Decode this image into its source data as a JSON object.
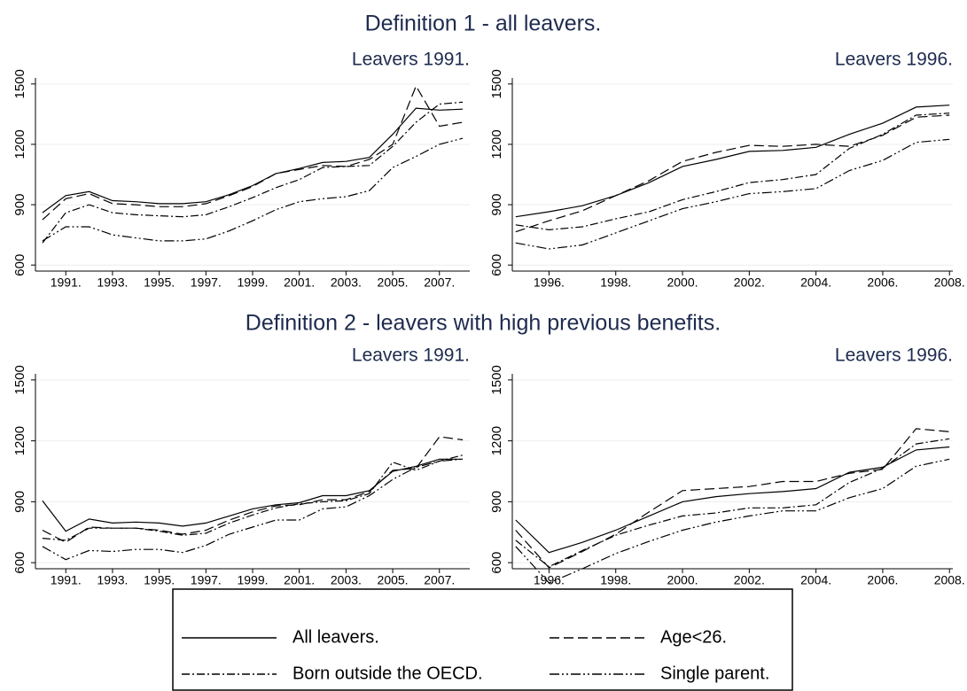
{
  "chart_data": [
    {
      "type": "line",
      "heading": "Definition 1 - all leavers.",
      "title": "Leavers 1991.",
      "grid": true,
      "x": [
        1990,
        1991,
        1992,
        1993,
        1994,
        1995,
        1996,
        1997,
        1998,
        1999,
        2000,
        2001,
        2002,
        2003,
        2004,
        2005,
        2006,
        2007,
        2008
      ],
      "xlim": [
        1989.7,
        2008.3
      ],
      "xticks": [
        {
          "value": 1991,
          "label": "1991."
        },
        {
          "value": 1993,
          "label": "1993."
        },
        {
          "value": 1995,
          "label": "1995."
        },
        {
          "value": 1997,
          "label": "1997."
        },
        {
          "value": 1999,
          "label": "1999."
        },
        {
          "value": 2001,
          "label": "2001."
        },
        {
          "value": 2003,
          "label": "2003."
        },
        {
          "value": 2005,
          "label": "2005."
        },
        {
          "value": 2007,
          "label": "2007."
        }
      ],
      "ylim": [
        570,
        1530
      ],
      "yticks": [
        600,
        900,
        1200,
        1500
      ],
      "series": [
        {
          "name": "All leavers.",
          "color": "#000000",
          "dash": "solid",
          "values": [
            860,
            945,
            965,
            920,
            915,
            905,
            905,
            915,
            950,
            995,
            1055,
            1080,
            1110,
            1115,
            1135,
            1250,
            1380,
            1370,
            1375
          ]
        },
        {
          "name": "Age<26.",
          "color": "#000000",
          "dash": "dash",
          "values": [
            825,
            930,
            955,
            905,
            900,
            890,
            890,
            905,
            945,
            990,
            1055,
            1075,
            1095,
            1090,
            1125,
            1200,
            1490,
            1290,
            1310
          ]
        },
        {
          "name": "Born outside the OECD.",
          "color": "#000000",
          "dash": "dashdot",
          "values": [
            710,
            860,
            900,
            860,
            850,
            845,
            840,
            850,
            890,
            935,
            985,
            1025,
            1085,
            1090,
            1095,
            1190,
            1310,
            1400,
            1410
          ]
        },
        {
          "name": "Single parent.",
          "color": "#000000",
          "dash": "dashdotdot",
          "values": [
            720,
            790,
            790,
            750,
            735,
            720,
            720,
            730,
            770,
            820,
            875,
            915,
            930,
            940,
            970,
            1085,
            1140,
            1200,
            1230
          ]
        }
      ]
    },
    {
      "type": "line",
      "title": "Leavers 1996.",
      "grid": true,
      "x": [
        1995,
        1996,
        1997,
        1998,
        1999,
        2000,
        2001,
        2002,
        2003,
        2004,
        2005,
        2006,
        2007,
        2008
      ],
      "xlim": [
        1994.9,
        2008.1
      ],
      "xticks": [
        {
          "value": 1996,
          "label": "1996."
        },
        {
          "value": 1998,
          "label": "1998."
        },
        {
          "value": 2000,
          "label": "2000."
        },
        {
          "value": 2002,
          "label": "2002."
        },
        {
          "value": 2004,
          "label": "2004."
        },
        {
          "value": 2006,
          "label": "2006."
        },
        {
          "value": 2008,
          "label": "2008."
        }
      ],
      "ylim": [
        570,
        1530
      ],
      "yticks": [
        600,
        900,
        1200,
        1500
      ],
      "series": [
        {
          "name": "All leavers.",
          "color": "#000000",
          "dash": "solid",
          "values": [
            840,
            865,
            895,
            945,
            1010,
            1090,
            1125,
            1165,
            1170,
            1185,
            1250,
            1305,
            1385,
            1395
          ]
        },
        {
          "name": "Age<26.",
          "color": "#000000",
          "dash": "dash",
          "values": [
            765,
            820,
            870,
            945,
            1020,
            1115,
            1160,
            1195,
            1190,
            1200,
            1190,
            1245,
            1335,
            1345
          ]
        },
        {
          "name": "Born outside the OECD.",
          "color": "#000000",
          "dash": "dashdot",
          "values": [
            800,
            775,
            790,
            830,
            865,
            925,
            965,
            1010,
            1025,
            1050,
            1180,
            1250,
            1345,
            1355
          ]
        },
        {
          "name": "Single parent.",
          "color": "#000000",
          "dash": "dashdotdot",
          "values": [
            710,
            680,
            700,
            760,
            820,
            880,
            915,
            955,
            965,
            980,
            1070,
            1120,
            1210,
            1225
          ]
        }
      ]
    },
    {
      "type": "line",
      "heading": "Definition 2 - leavers with high previous benefits.",
      "title": "Leavers 1991.",
      "grid": true,
      "x": [
        1990,
        1991,
        1992,
        1993,
        1994,
        1995,
        1996,
        1997,
        1998,
        1999,
        2000,
        2001,
        2002,
        2003,
        2004,
        2005,
        2006,
        2007,
        2008
      ],
      "xlim": [
        1989.7,
        2008.3
      ],
      "xticks": [
        {
          "value": 1991,
          "label": "1991."
        },
        {
          "value": 1993,
          "label": "1993."
        },
        {
          "value": 1995,
          "label": "1995."
        },
        {
          "value": 1997,
          "label": "1997."
        },
        {
          "value": 1999,
          "label": "1999."
        },
        {
          "value": 2001,
          "label": "2001."
        },
        {
          "value": 2003,
          "label": "2003."
        },
        {
          "value": 2005,
          "label": "2005."
        },
        {
          "value": 2007,
          "label": "2007."
        }
      ],
      "ylim": [
        570,
        1530
      ],
      "yticks": [
        600,
        900,
        1200,
        1500
      ],
      "series": [
        {
          "name": "All leavers.",
          "color": "#000000",
          "dash": "solid",
          "values": [
            905,
            755,
            815,
            795,
            800,
            795,
            780,
            795,
            830,
            865,
            885,
            895,
            930,
            930,
            955,
            1050,
            1075,
            1110,
            1110
          ]
        },
        {
          "name": "Age<26.",
          "color": "#000000",
          "dash": "dash",
          "values": [
            760,
            700,
            775,
            770,
            770,
            760,
            740,
            760,
            810,
            850,
            880,
            885,
            910,
            910,
            950,
            1055,
            1065,
            1220,
            1205
          ]
        },
        {
          "name": "Born outside the OECD.",
          "color": "#000000",
          "dash": "dashdot",
          "values": [
            720,
            710,
            770,
            770,
            770,
            755,
            735,
            745,
            795,
            835,
            870,
            890,
            900,
            905,
            940,
            1095,
            1055,
            1100,
            1130
          ]
        },
        {
          "name": "Single parent.",
          "color": "#000000",
          "dash": "dashdotdot",
          "values": [
            680,
            615,
            660,
            655,
            665,
            665,
            650,
            685,
            740,
            775,
            810,
            810,
            865,
            875,
            930,
            1010,
            1070,
            1100,
            1110
          ]
        }
      ]
    },
    {
      "type": "line",
      "title": "Leavers 1996.",
      "grid": true,
      "x": [
        1995,
        1996,
        1997,
        1998,
        1999,
        2000,
        2001,
        2002,
        2003,
        2004,
        2005,
        2006,
        2007,
        2008
      ],
      "xlim": [
        1994.9,
        2008.1
      ],
      "xticks": [
        {
          "value": 1996,
          "label": "1996."
        },
        {
          "value": 1998,
          "label": "1998."
        },
        {
          "value": 2000,
          "label": "2000."
        },
        {
          "value": 2002,
          "label": "2002."
        },
        {
          "value": 2004,
          "label": "2004."
        },
        {
          "value": 2006,
          "label": "2006."
        },
        {
          "value": 2008,
          "label": "2008."
        }
      ],
      "ylim": [
        570,
        1530
      ],
      "yticks": [
        600,
        900,
        1200,
        1500
      ],
      "series": [
        {
          "name": "All leavers.",
          "color": "#000000",
          "dash": "solid",
          "values": [
            810,
            650,
            700,
            760,
            830,
            900,
            925,
            940,
            950,
            965,
            1045,
            1070,
            1155,
            1170
          ]
        },
        {
          "name": "Age<26.",
          "color": "#000000",
          "dash": "dash",
          "values": [
            760,
            575,
            655,
            740,
            850,
            955,
            965,
            975,
            1000,
            1000,
            1040,
            1060,
            1260,
            1245
          ]
        },
        {
          "name": "Born outside the OECD.",
          "color": "#000000",
          "dash": "dashdot",
          "values": [
            710,
            580,
            660,
            735,
            785,
            830,
            845,
            870,
            870,
            885,
            995,
            1065,
            1185,
            1210
          ]
        },
        {
          "name": "Single parent.",
          "color": "#000000",
          "dash": "dashdotdot",
          "values": [
            680,
            500,
            570,
            645,
            705,
            760,
            800,
            830,
            855,
            855,
            920,
            965,
            1075,
            1110
          ]
        }
      ]
    }
  ]
}
